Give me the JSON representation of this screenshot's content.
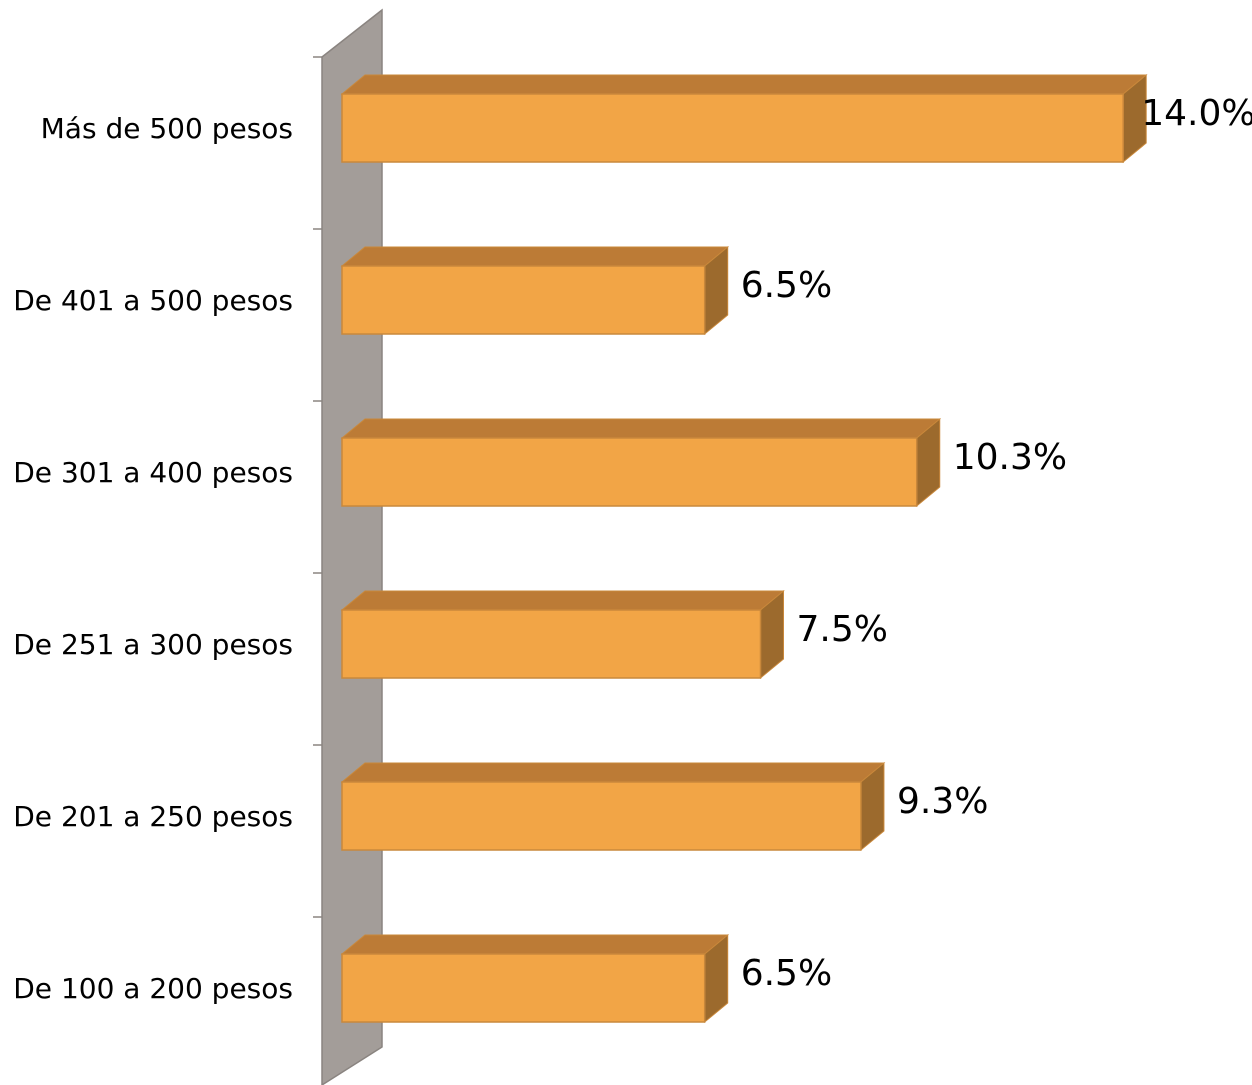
{
  "chart_data": {
    "type": "bar",
    "orientation": "horizontal",
    "three_d": true,
    "categories": [
      "De 100 a 200 pesos",
      "De 201 a 250 pesos",
      "De 251 a 300 pesos",
      "De 301 a 400 pesos",
      "De 401 a 500 pesos",
      "Más de 500 pesos"
    ],
    "values": [
      6.5,
      9.3,
      7.5,
      10.3,
      6.5,
      14.0
    ],
    "value_labels": [
      "6.5%",
      "9.3%",
      "7.5%",
      "10.3%",
      "6.5%",
      "14.0%"
    ],
    "title": "",
    "xlabel": "",
    "ylabel": "",
    "xlim": [
      0,
      14.0
    ],
    "grid": false,
    "legend": "none",
    "colors": {
      "bar_front": "#F2A546",
      "bar_top": "#BC7B36",
      "bar_side": "#9C6A2D",
      "bar_stroke": "#C9883B",
      "wall": "#A39D99",
      "wall_stroke": "#8A8480",
      "axis_tick": "#8A8480"
    }
  }
}
